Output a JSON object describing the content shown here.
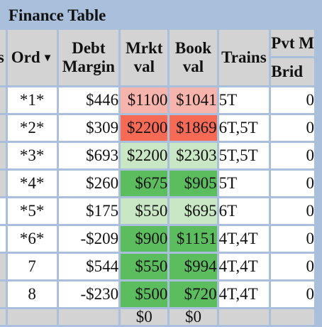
{
  "title": "Finance Table",
  "headers": {
    "prev": "s",
    "ord": "Ord",
    "debt_margin_1": "Debt",
    "debt_margin_2": "Margin",
    "mrkt_val_1": "Mrkt",
    "mrkt_val_2": "val",
    "book_val_1": "Book",
    "book_val_2": "val",
    "trains": "Trains",
    "pvt": "Pvt M",
    "brid": "Brid"
  },
  "colors": {
    "pale_red": "#f7b4ac",
    "red": "#f76a55",
    "pale_green": "#c9e7c4",
    "green": "#5cbd5e",
    "header_grey": "#d3d3d3",
    "background": "#a9bfdb"
  },
  "rows": [
    {
      "ord": "*1*",
      "debt": "$446",
      "mrkt": "$1100",
      "book": "$1041",
      "trains": "5T",
      "brid": "0"
    },
    {
      "ord": "*2*",
      "debt": "$309",
      "mrkt": "$2200",
      "book": "$1869",
      "trains": "6T,5T",
      "brid": "0"
    },
    {
      "ord": "*3*",
      "debt": "$693",
      "mrkt": "$2200",
      "book": "$2303",
      "trains": "5T,5T",
      "brid": "0"
    },
    {
      "ord": "*4*",
      "debt": "$260",
      "mrkt": "$675",
      "book": "$905",
      "trains": "5T",
      "brid": "0"
    },
    {
      "ord": "*5*",
      "debt": "$175",
      "mrkt": "$550",
      "book": "$695",
      "trains": "6T",
      "brid": "0"
    },
    {
      "ord": "*6*",
      "debt": "-$209",
      "mrkt": "$900",
      "book": "$1151",
      "trains": "4T,4T",
      "brid": "0"
    },
    {
      "ord": "7",
      "debt": "$544",
      "mrkt": "$550",
      "book": "$994",
      "trains": "4T,4T",
      "brid": "0"
    },
    {
      "ord": "8",
      "debt": "-$230",
      "mrkt": "$500",
      "book": "$720",
      "trains": "4T,4T",
      "brid": "0"
    }
  ],
  "footer": {
    "mrkt": "$0",
    "book": "$0"
  }
}
